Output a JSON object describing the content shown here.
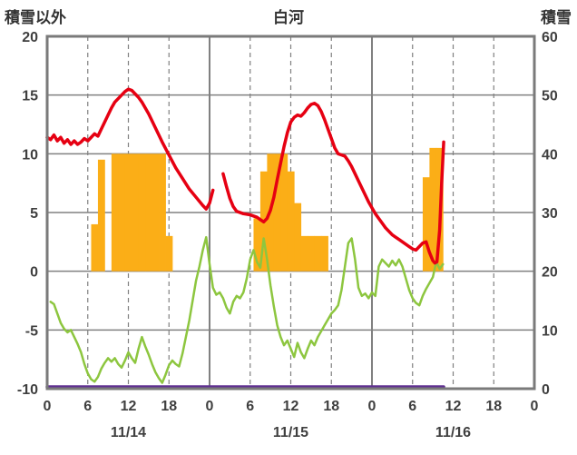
{
  "header": {
    "left_axis_title": "積雪以外",
    "station_title": "白河",
    "right_axis_title": "積雪"
  },
  "chart_data": {
    "type": "line",
    "title": "白河",
    "left_axis": {
      "label": "積雪以外",
      "min": -10,
      "max": 20,
      "ticks": [
        20,
        15,
        10,
        5,
        0,
        -5,
        -10
      ]
    },
    "right_axis": {
      "label": "積雪",
      "min": 0,
      "max": 60,
      "ticks": [
        60,
        50,
        40,
        30,
        20,
        10,
        0
      ]
    },
    "x_axis": {
      "unit": "hour",
      "min": 0,
      "max": 72,
      "tick_interval": 6,
      "tick_labels": [
        "0",
        "6",
        "12",
        "18",
        "0",
        "6",
        "12",
        "18",
        "0",
        "6",
        "12",
        "18",
        "0"
      ],
      "day_labels": [
        {
          "label": "11/14",
          "hour": 12
        },
        {
          "label": "11/15",
          "hour": 36
        },
        {
          "label": "11/16",
          "hour": 60
        }
      ],
      "day_boundaries": [
        24,
        48
      ]
    },
    "grid": {
      "color": "#808080",
      "frame_color": "#7a7a7a",
      "dash_vertical": "6h lines dashed, day boundaries solid"
    },
    "series": [
      {
        "name": "orange-bars",
        "type": "bar",
        "axis": "left",
        "color": "#fbae17",
        "bar_width_hours": 1,
        "points": [
          [
            7,
            4
          ],
          [
            8,
            9.5
          ],
          [
            10,
            10
          ],
          [
            11,
            10
          ],
          [
            12,
            10
          ],
          [
            13,
            10
          ],
          [
            14,
            10
          ],
          [
            15,
            10
          ],
          [
            16,
            10
          ],
          [
            17,
            10
          ],
          [
            18,
            3
          ],
          [
            31,
            4.5
          ],
          [
            32,
            8.5
          ],
          [
            33,
            10
          ],
          [
            34,
            10
          ],
          [
            35,
            10
          ],
          [
            36,
            8.5
          ],
          [
            37,
            5.8
          ],
          [
            38,
            3
          ],
          [
            39,
            3
          ],
          [
            40,
            3
          ],
          [
            41,
            3
          ],
          [
            56,
            8
          ],
          [
            57,
            10.5
          ],
          [
            58,
            10.5
          ]
        ]
      },
      {
        "name": "purple-line",
        "type": "line",
        "axis": "right",
        "color": "#5f2f90",
        "width": 3.5,
        "points": [
          [
            0,
            0
          ],
          [
            58.6,
            0
          ]
        ]
      },
      {
        "name": "green-line",
        "type": "line",
        "axis": "left",
        "color": "#8dc63f",
        "width": 2.5,
        "points": [
          [
            0.5,
            -2.6
          ],
          [
            1,
            -2.8
          ],
          [
            1.5,
            -3.6
          ],
          [
            2,
            -4.4
          ],
          [
            2.5,
            -4.9
          ],
          [
            3,
            -5.2
          ],
          [
            3.5,
            -5.0
          ],
          [
            4,
            -5.6
          ],
          [
            4.5,
            -6.2
          ],
          [
            5,
            -6.9
          ],
          [
            5.5,
            -7.9
          ],
          [
            6,
            -8.7
          ],
          [
            6.5,
            -9.2
          ],
          [
            7,
            -9.4
          ],
          [
            7.5,
            -9.0
          ],
          [
            8,
            -8.3
          ],
          [
            8.5,
            -7.8
          ],
          [
            9,
            -7.4
          ],
          [
            9.5,
            -7.7
          ],
          [
            10,
            -7.4
          ],
          [
            10.5,
            -7.9
          ],
          [
            11,
            -8.2
          ],
          [
            11.5,
            -7.6
          ],
          [
            12,
            -6.9
          ],
          [
            12.5,
            -7.4
          ],
          [
            13,
            -7.8
          ],
          [
            13.5,
            -6.6
          ],
          [
            14,
            -5.6
          ],
          [
            14.5,
            -6.4
          ],
          [
            15,
            -7.1
          ],
          [
            15.5,
            -7.9
          ],
          [
            16,
            -8.6
          ],
          [
            16.5,
            -9.1
          ],
          [
            17,
            -9.5
          ],
          [
            17.5,
            -8.8
          ],
          [
            18,
            -8.0
          ],
          [
            18.5,
            -7.6
          ],
          [
            19,
            -7.9
          ],
          [
            19.5,
            -8.1
          ],
          [
            20,
            -7.0
          ],
          [
            21,
            -4.2
          ],
          [
            22,
            -0.8
          ],
          [
            22.5,
            0.4
          ],
          [
            23,
            1.8
          ],
          [
            23.5,
            2.9
          ],
          [
            24,
            0.6
          ],
          [
            24.5,
            -1.4
          ],
          [
            25,
            -2.0
          ],
          [
            25.5,
            -1.8
          ],
          [
            26,
            -2.3
          ],
          [
            26.5,
            -3.1
          ],
          [
            27,
            -3.6
          ],
          [
            27.5,
            -2.6
          ],
          [
            28,
            -2.1
          ],
          [
            28.5,
            -2.3
          ],
          [
            29,
            -1.8
          ],
          [
            29.5,
            -0.6
          ],
          [
            30,
            1.0
          ],
          [
            30.5,
            1.8
          ],
          [
            31,
            0.8
          ],
          [
            31.5,
            0.3
          ],
          [
            32,
            2.8
          ],
          [
            32.5,
            1.0
          ],
          [
            33,
            -1.2
          ],
          [
            33.5,
            -3.0
          ],
          [
            34,
            -4.6
          ],
          [
            34.5,
            -5.6
          ],
          [
            35,
            -6.3
          ],
          [
            35.5,
            -5.9
          ],
          [
            36,
            -6.6
          ],
          [
            36.5,
            -7.3
          ],
          [
            37,
            -6.1
          ],
          [
            37.5,
            -6.9
          ],
          [
            38,
            -7.4
          ],
          [
            38.5,
            -6.6
          ],
          [
            39,
            -5.9
          ],
          [
            39.5,
            -6.3
          ],
          [
            40,
            -5.6
          ],
          [
            40.5,
            -5.1
          ],
          [
            41,
            -4.6
          ],
          [
            41.5,
            -4.1
          ],
          [
            42,
            -3.6
          ],
          [
            42.5,
            -3.3
          ],
          [
            43,
            -2.9
          ],
          [
            43.5,
            -1.6
          ],
          [
            44,
            0.4
          ],
          [
            44.5,
            2.4
          ],
          [
            45,
            2.8
          ],
          [
            45.5,
            1.0
          ],
          [
            46,
            -1.4
          ],
          [
            46.5,
            -2.1
          ],
          [
            47,
            -1.9
          ],
          [
            47.5,
            -2.3
          ],
          [
            48,
            -1.8
          ],
          [
            48.5,
            -2.1
          ],
          [
            49,
            0.4
          ],
          [
            49.5,
            1.0
          ],
          [
            50,
            0.7
          ],
          [
            50.5,
            0.4
          ],
          [
            51,
            0.9
          ],
          [
            51.5,
            0.5
          ],
          [
            52,
            1.0
          ],
          [
            52.5,
            0.4
          ],
          [
            53,
            -0.6
          ],
          [
            53.5,
            -1.6
          ],
          [
            54,
            -2.3
          ],
          [
            54.5,
            -2.7
          ],
          [
            55,
            -2.9
          ],
          [
            55.5,
            -2.1
          ],
          [
            56,
            -1.5
          ],
          [
            56.5,
            -1.0
          ],
          [
            57,
            -0.5
          ],
          [
            57.5,
            0.8
          ],
          [
            58,
            0.2
          ],
          [
            58.5,
            0.6
          ]
        ]
      },
      {
        "name": "red-line",
        "type": "line",
        "axis": "left",
        "color": "#e60012",
        "width": 3.5,
        "points": [
          [
            0,
            11.4
          ],
          [
            0.5,
            11.2
          ],
          [
            1,
            11.6
          ],
          [
            1.5,
            11.1
          ],
          [
            2,
            11.4
          ],
          [
            2.5,
            10.9
          ],
          [
            3,
            11.2
          ],
          [
            3.5,
            10.8
          ],
          [
            4,
            11.1
          ],
          [
            4.5,
            10.8
          ],
          [
            5,
            11.0
          ],
          [
            5.5,
            11.3
          ],
          [
            6,
            11.1
          ],
          [
            6.5,
            11.4
          ],
          [
            7,
            11.7
          ],
          [
            7.5,
            11.5
          ],
          [
            8,
            12.1
          ],
          [
            8.5,
            12.7
          ],
          [
            9,
            13.3
          ],
          [
            9.5,
            13.9
          ],
          [
            10,
            14.4
          ],
          [
            10.5,
            14.7
          ],
          [
            11,
            15.0
          ],
          [
            11.5,
            15.3
          ],
          [
            12,
            15.5
          ],
          [
            12.5,
            15.4
          ],
          [
            13,
            15.1
          ],
          [
            13.5,
            14.8
          ],
          [
            14,
            14.4
          ],
          [
            15,
            13.4
          ],
          [
            16,
            12.2
          ],
          [
            17,
            11.0
          ],
          [
            18,
            9.9
          ],
          [
            19,
            8.8
          ],
          [
            20,
            7.9
          ],
          [
            21,
            7.0
          ],
          [
            22,
            6.3
          ],
          [
            23,
            5.6
          ],
          [
            23.5,
            5.3
          ],
          [
            24,
            5.8
          ],
          [
            24.5,
            6.9
          ],
          null,
          [
            26,
            8.3
          ],
          [
            26.5,
            7.2
          ],
          [
            27,
            6.2
          ],
          [
            27.5,
            5.5
          ],
          [
            28,
            5.1
          ],
          [
            29,
            4.9
          ],
          [
            30,
            4.8
          ],
          [
            31,
            4.6
          ],
          [
            31.5,
            4.4
          ],
          [
            32,
            4.2
          ],
          [
            32.5,
            4.5
          ],
          [
            33,
            5.2
          ],
          [
            33.5,
            6.3
          ],
          [
            34,
            7.8
          ],
          [
            34.5,
            9.2
          ],
          [
            35,
            10.6
          ],
          [
            35.5,
            11.8
          ],
          [
            36,
            12.7
          ],
          [
            36.5,
            13.1
          ],
          [
            37,
            13.3
          ],
          [
            37.5,
            13.2
          ],
          [
            38,
            13.5
          ],
          [
            38.5,
            13.9
          ],
          [
            39,
            14.2
          ],
          [
            39.5,
            14.3
          ],
          [
            40,
            14.1
          ],
          [
            40.5,
            13.6
          ],
          [
            41,
            12.9
          ],
          [
            41.5,
            12.1
          ],
          [
            42,
            11.3
          ],
          [
            42.5,
            10.5
          ],
          [
            43,
            10.0
          ],
          [
            43.5,
            9.9
          ],
          [
            44,
            9.8
          ],
          [
            44.5,
            9.4
          ],
          [
            45,
            8.9
          ],
          [
            45.5,
            8.3
          ],
          [
            46,
            7.7
          ],
          [
            46.5,
            7.1
          ],
          [
            47,
            6.5
          ],
          [
            47.5,
            5.9
          ],
          [
            48,
            5.4
          ],
          [
            48.5,
            4.9
          ],
          [
            49,
            4.5
          ],
          [
            49.5,
            4.1
          ],
          [
            50,
            3.7
          ],
          [
            50.5,
            3.4
          ],
          [
            51,
            3.1
          ],
          [
            51.5,
            2.9
          ],
          [
            52,
            2.7
          ],
          [
            52.5,
            2.5
          ],
          [
            53,
            2.3
          ],
          [
            53.5,
            2.1
          ],
          [
            54,
            1.9
          ],
          [
            54.5,
            1.8
          ],
          [
            55,
            2.1
          ],
          [
            55.5,
            2.4
          ],
          [
            56,
            2.5
          ],
          [
            56.5,
            1.6
          ],
          [
            57,
            0.9
          ],
          [
            57.3,
            0.7
          ],
          [
            57.6,
            0.8
          ],
          [
            58,
            3.5
          ],
          [
            58.3,
            7.5
          ],
          [
            58.6,
            11.0
          ]
        ]
      }
    ]
  }
}
